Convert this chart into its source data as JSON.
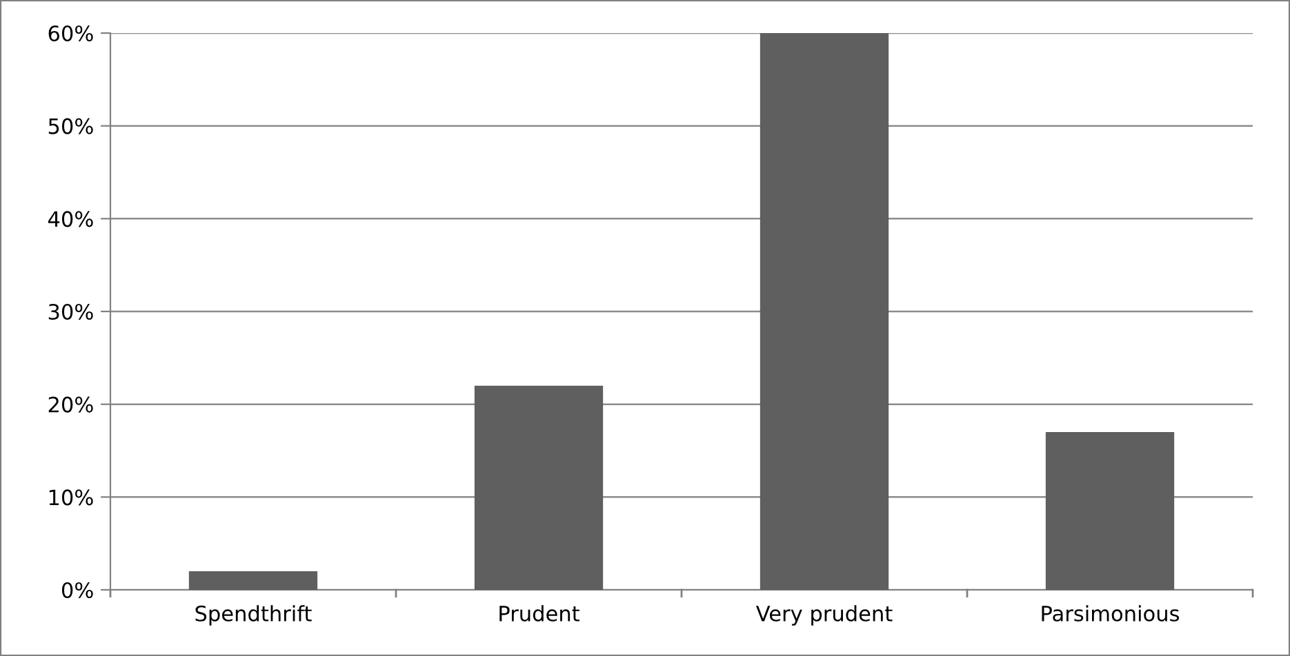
{
  "chart_data": {
    "type": "bar",
    "categories": [
      "Spendthrift",
      "Prudent",
      "Very prudent",
      "Parsimonious"
    ],
    "values": [
      2,
      22,
      60,
      17
    ],
    "color": "#5f5f5f",
    "ylim": [
      0,
      60
    ],
    "yticks": [
      {
        "value": 0,
        "label": "0%"
      },
      {
        "value": 10,
        "label": "10%"
      },
      {
        "value": 20,
        "label": "20%"
      },
      {
        "value": 30,
        "label": "30%"
      },
      {
        "value": 40,
        "label": "40%"
      },
      {
        "value": 50,
        "label": "50%"
      },
      {
        "value": 60,
        "label": "60%"
      }
    ],
    "grid": "y",
    "legend": false
  }
}
